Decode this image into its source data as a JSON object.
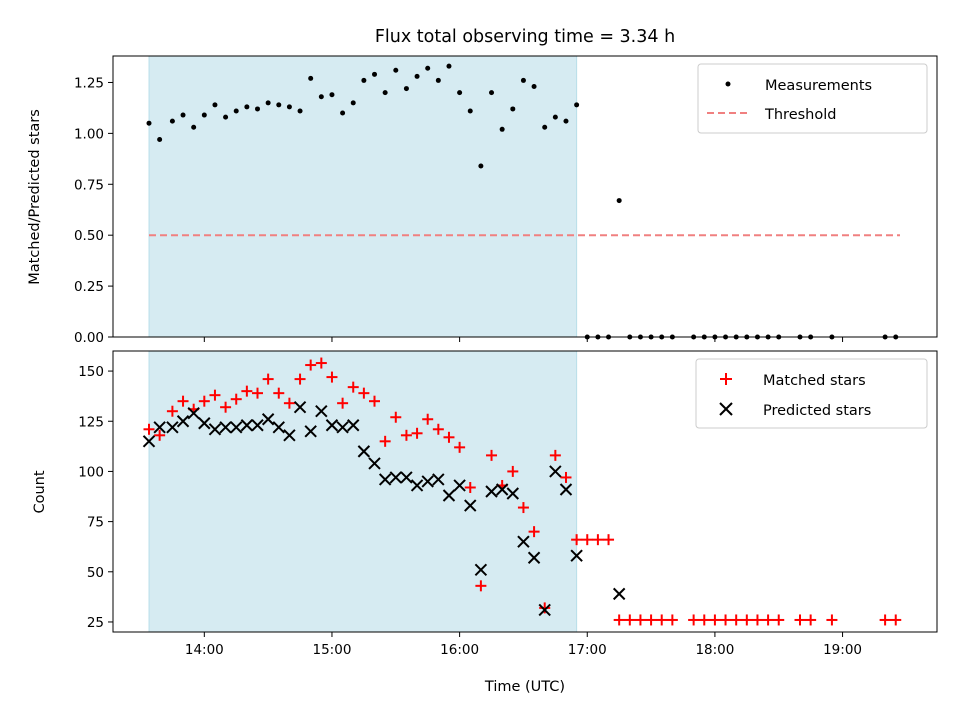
{
  "chart_data": {
    "title": "Flux total observing time = 3.34 h",
    "shaded_region": {
      "start": "13:34",
      "end": "16:55",
      "color": "#add8e6"
    },
    "panels": [
      {
        "type": "scatter",
        "ylabel": "Matched/Predicted stars",
        "ylim": [
          0,
          1.38
        ],
        "yticks": [
          "0.00",
          "0.25",
          "0.50",
          "0.75",
          "1.00",
          "1.25"
        ],
        "legend_placement": "top-right",
        "threshold": {
          "name": "Threshold",
          "value": 0.5,
          "x_start": "13:34",
          "x_end": "19:27",
          "color": "#f08080",
          "style": "dashed"
        },
        "series": [
          {
            "name": "Measurements",
            "color": "#000000",
            "points": [
              [
                "13:34",
                1.05
              ],
              [
                "13:39",
                0.97
              ],
              [
                "13:45",
                1.06
              ],
              [
                "13:50",
                1.09
              ],
              [
                "13:55",
                1.03
              ],
              [
                "14:00",
                1.09
              ],
              [
                "14:05",
                1.14
              ],
              [
                "14:10",
                1.08
              ],
              [
                "14:15",
                1.11
              ],
              [
                "14:20",
                1.13
              ],
              [
                "14:25",
                1.12
              ],
              [
                "14:30",
                1.15
              ],
              [
                "14:35",
                1.14
              ],
              [
                "14:40",
                1.13
              ],
              [
                "14:45",
                1.11
              ],
              [
                "14:50",
                1.27
              ],
              [
                "14:55",
                1.18
              ],
              [
                "15:00",
                1.19
              ],
              [
                "15:05",
                1.1
              ],
              [
                "15:10",
                1.15
              ],
              [
                "15:15",
                1.26
              ],
              [
                "15:20",
                1.29
              ],
              [
                "15:25",
                1.2
              ],
              [
                "15:30",
                1.31
              ],
              [
                "15:35",
                1.22
              ],
              [
                "15:40",
                1.28
              ],
              [
                "15:45",
                1.32
              ],
              [
                "15:50",
                1.26
              ],
              [
                "15:55",
                1.33
              ],
              [
                "16:00",
                1.2
              ],
              [
                "16:05",
                1.11
              ],
              [
                "16:10",
                0.84
              ],
              [
                "16:15",
                1.2
              ],
              [
                "16:20",
                1.02
              ],
              [
                "16:25",
                1.12
              ],
              [
                "16:30",
                1.26
              ],
              [
                "16:35",
                1.23
              ],
              [
                "16:40",
                1.03
              ],
              [
                "16:45",
                1.08
              ],
              [
                "16:50",
                1.06
              ],
              [
                "16:55",
                1.14
              ],
              [
                "17:00",
                0.0
              ],
              [
                "17:05",
                0.0
              ],
              [
                "17:10",
                0.0
              ],
              [
                "17:15",
                0.67
              ],
              [
                "17:20",
                0.0
              ],
              [
                "17:25",
                0.0
              ],
              [
                "17:30",
                0.0
              ],
              [
                "17:35",
                0.0
              ],
              [
                "17:40",
                0.0
              ],
              [
                "17:50",
                0.0
              ],
              [
                "17:55",
                0.0
              ],
              [
                "18:00",
                0.0
              ],
              [
                "18:05",
                0.0
              ],
              [
                "18:10",
                0.0
              ],
              [
                "18:15",
                0.0
              ],
              [
                "18:20",
                0.0
              ],
              [
                "18:25",
                0.0
              ],
              [
                "18:30",
                0.0
              ],
              [
                "18:40",
                0.0
              ],
              [
                "18:45",
                0.0
              ],
              [
                "18:55",
                0.0
              ],
              [
                "19:20",
                0.0
              ],
              [
                "19:25",
                0.0
              ]
            ]
          }
        ]
      },
      {
        "type": "scatter",
        "ylabel": "Count",
        "xlabel": "Time (UTC)",
        "ylim": [
          20,
          160
        ],
        "yticks": [
          "25",
          "50",
          "75",
          "100",
          "125",
          "150"
        ],
        "xticks": [
          "14:00",
          "15:00",
          "16:00",
          "17:00",
          "18:00",
          "19:00"
        ],
        "legend_placement": "top-right",
        "series": [
          {
            "name": "Matched stars",
            "marker": "+",
            "color": "#ff0000",
            "points": [
              [
                "13:34",
                121
              ],
              [
                "13:39",
                118
              ],
              [
                "13:45",
                130
              ],
              [
                "13:50",
                135
              ],
              [
                "13:55",
                131
              ],
              [
                "14:00",
                135
              ],
              [
                "14:05",
                138
              ],
              [
                "14:10",
                132
              ],
              [
                "14:15",
                136
              ],
              [
                "14:20",
                140
              ],
              [
                "14:25",
                139
              ],
              [
                "14:30",
                146
              ],
              [
                "14:35",
                139
              ],
              [
                "14:40",
                134
              ],
              [
                "14:45",
                146
              ],
              [
                "14:50",
                153
              ],
              [
                "14:55",
                154
              ],
              [
                "15:00",
                147
              ],
              [
                "15:05",
                134
              ],
              [
                "15:10",
                142
              ],
              [
                "15:15",
                139
              ],
              [
                "15:20",
                135
              ],
              [
                "15:25",
                115
              ],
              [
                "15:30",
                127
              ],
              [
                "15:35",
                118
              ],
              [
                "15:40",
                119
              ],
              [
                "15:45",
                126
              ],
              [
                "15:50",
                121
              ],
              [
                "15:55",
                117
              ],
              [
                "16:00",
                112
              ],
              [
                "16:05",
                92
              ],
              [
                "16:10",
                43
              ],
              [
                "16:15",
                108
              ],
              [
                "16:20",
                93
              ],
              [
                "16:25",
                100
              ],
              [
                "16:30",
                82
              ],
              [
                "16:35",
                70
              ],
              [
                "16:40",
                32
              ],
              [
                "16:45",
                108
              ],
              [
                "16:50",
                97
              ],
              [
                "16:55",
                66
              ],
              [
                "17:00",
                66
              ],
              [
                "17:05",
                66
              ],
              [
                "17:10",
                66
              ],
              [
                "17:15",
                26
              ],
              [
                "17:20",
                26
              ],
              [
                "17:25",
                26
              ],
              [
                "17:30",
                26
              ],
              [
                "17:35",
                26
              ],
              [
                "17:40",
                26
              ],
              [
                "17:50",
                26
              ],
              [
                "17:55",
                26
              ],
              [
                "18:00",
                26
              ],
              [
                "18:05",
                26
              ],
              [
                "18:10",
                26
              ],
              [
                "18:15",
                26
              ],
              [
                "18:20",
                26
              ],
              [
                "18:25",
                26
              ],
              [
                "18:30",
                26
              ],
              [
                "18:40",
                26
              ],
              [
                "18:45",
                26
              ],
              [
                "18:55",
                26
              ],
              [
                "19:20",
                26
              ],
              [
                "19:25",
                26
              ]
            ]
          },
          {
            "name": "Predicted stars",
            "marker": "x",
            "color": "#000000",
            "points": [
              [
                "13:34",
                115
              ],
              [
                "13:39",
                122
              ],
              [
                "13:45",
                122
              ],
              [
                "13:50",
                125
              ],
              [
                "13:55",
                129
              ],
              [
                "14:00",
                124
              ],
              [
                "14:05",
                121
              ],
              [
                "14:10",
                122
              ],
              [
                "14:15",
                122
              ],
              [
                "14:20",
                123
              ],
              [
                "14:25",
                123
              ],
              [
                "14:30",
                126
              ],
              [
                "14:35",
                122
              ],
              [
                "14:40",
                118
              ],
              [
                "14:45",
                132
              ],
              [
                "14:50",
                120
              ],
              [
                "14:55",
                130
              ],
              [
                "15:00",
                123
              ],
              [
                "15:05",
                122
              ],
              [
                "15:10",
                123
              ],
              [
                "15:15",
                110
              ],
              [
                "15:20",
                104
              ],
              [
                "15:25",
                96
              ],
              [
                "15:30",
                97
              ],
              [
                "15:35",
                97
              ],
              [
                "15:40",
                93
              ],
              [
                "15:45",
                95
              ],
              [
                "15:50",
                96
              ],
              [
                "15:55",
                88
              ],
              [
                "16:00",
                93
              ],
              [
                "16:05",
                83
              ],
              [
                "16:10",
                51
              ],
              [
                "16:15",
                90
              ],
              [
                "16:20",
                91
              ],
              [
                "16:25",
                89
              ],
              [
                "16:30",
                65
              ],
              [
                "16:35",
                57
              ],
              [
                "16:40",
                31
              ],
              [
                "16:45",
                100
              ],
              [
                "16:50",
                91
              ],
              [
                "16:55",
                58
              ],
              [
                "17:15",
                39
              ]
            ]
          }
        ]
      }
    ]
  }
}
